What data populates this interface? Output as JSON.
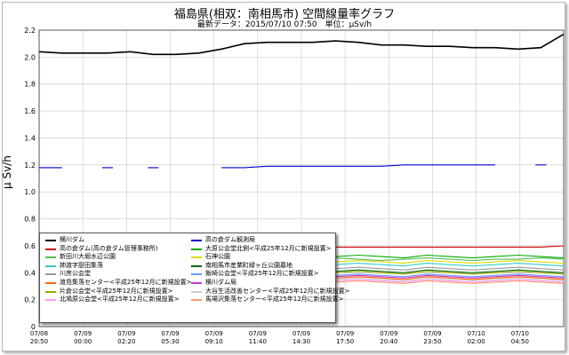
{
  "header": {
    "title": "福島県(相双：南相馬市) 空間線量率グラフ",
    "subtitle": "最新データ：2015/07/10 07:50　単位：μSv/h"
  },
  "chart_data": {
    "type": "line",
    "title": "福島県(相双：南相馬市) 空間線量率グラフ",
    "ylabel": "μ Sv/h",
    "ylim": [
      0,
      2.2
    ],
    "yticks": [
      "0",
      "0.2",
      "0.4",
      "0.6",
      "0.8",
      "1.0",
      "1.2",
      "1.4",
      "1.6",
      "1.8",
      "2.0",
      "2.2"
    ],
    "xticks": [
      {
        "date": "07/08",
        "time": "20:50"
      },
      {
        "date": "07/09",
        "time": "00:00"
      },
      {
        "date": "07/09",
        "time": "02:20"
      },
      {
        "date": "07/09",
        "time": "05:30"
      },
      {
        "date": "07/09",
        "time": "09:10"
      },
      {
        "date": "07/09",
        "time": "11:40"
      },
      {
        "date": "07/09",
        "time": "14:30"
      },
      {
        "date": "07/09",
        "time": "17:50"
      },
      {
        "date": "07/09",
        "time": "20:40"
      },
      {
        "date": "07/09",
        "time": "23:50"
      },
      {
        "date": "07/10",
        "time": "02:00"
      },
      {
        "date": "07/10",
        "time": "04:50"
      }
    ],
    "grid": true,
    "legend_position": "bottom-left",
    "series": [
      {
        "name": "横川ダム",
        "color": "#000000",
        "values": [
          2.04,
          2.03,
          2.03,
          2.03,
          2.04,
          2.02,
          2.02,
          2.03,
          2.06,
          2.1,
          2.11,
          2.11,
          2.11,
          2.12,
          2.11,
          2.09,
          2.09,
          2.08,
          2.08,
          2.07,
          2.07,
          2.06,
          2.07,
          2.17
        ]
      },
      {
        "name": "高の倉ダム(高の倉ダム管理事務所)",
        "color": "#d00000",
        "values": [
          0.6,
          0.59,
          0.59,
          0.59,
          0.59,
          0.59,
          0.59,
          0.59,
          0.59,
          0.59,
          0.59,
          0.59,
          0.59,
          0.59,
          0.59,
          0.59,
          0.59,
          0.59,
          0.59,
          0.59,
          0.59,
          0.59,
          0.59,
          0.6
        ]
      },
      {
        "name": "新田川大堀水辺公園",
        "color": "#55bb55",
        "values": [
          0.5,
          0.49,
          0.51,
          0.5,
          0.49,
          0.5,
          0.51,
          0.5,
          0.49,
          0.5,
          0.51,
          0.49,
          0.5,
          0.51,
          0.5,
          0.49,
          0.5,
          0.51,
          0.5,
          0.49,
          0.5,
          0.5,
          0.51,
          0.5
        ]
      },
      {
        "name": "姉渡字厨田集落",
        "color": "#33cccc",
        "values": [
          0.46,
          0.47,
          0.45,
          0.46,
          0.47,
          0.45,
          0.46,
          0.47,
          0.46,
          0.45,
          0.47,
          0.46,
          0.45,
          0.46,
          0.47,
          0.46,
          0.45,
          0.47,
          0.46,
          0.45,
          0.46,
          0.47,
          0.46,
          0.45
        ]
      },
      {
        "name": "川房公会堂",
        "color": "#999999",
        "values": [
          0.43,
          0.44,
          0.42,
          0.43,
          0.44,
          0.42,
          0.43,
          0.44,
          0.43,
          0.42,
          0.44,
          0.43,
          0.42,
          0.43,
          0.44,
          0.43,
          0.42,
          0.44,
          0.43,
          0.42,
          0.43,
          0.44,
          0.43,
          0.42
        ]
      },
      {
        "name": "渡島集落センター<平成25年12月に新規設置>",
        "color": "#ff6600",
        "values": [
          0.36,
          0.37,
          0.35,
          0.36,
          0.37,
          0.35,
          0.36,
          0.37,
          0.36,
          0.35,
          0.37,
          0.36,
          0.35,
          0.36,
          0.37,
          0.36,
          0.35,
          0.37,
          0.36,
          0.35,
          0.36,
          0.37,
          0.36,
          0.35
        ]
      },
      {
        "name": "片倉公会堂<平成25年12月に新規設置>",
        "color": "#99aa00",
        "values": [
          0.4,
          0.41,
          0.39,
          0.4,
          0.41,
          0.39,
          0.4,
          0.41,
          0.4,
          0.39,
          0.41,
          0.4,
          0.39,
          0.4,
          0.41,
          0.4,
          0.39,
          0.41,
          0.4,
          0.39,
          0.4,
          0.41,
          0.4,
          0.39
        ]
      },
      {
        "name": "北鳩原公会堂<平成25年12月に新規設置>",
        "color": "#ff99ff",
        "values": [
          0.34,
          0.35,
          0.33,
          0.34,
          0.35,
          0.33,
          0.34,
          0.35,
          0.34,
          0.33,
          0.35,
          0.34,
          0.33,
          0.34,
          0.35,
          0.34,
          0.33,
          0.35,
          0.34,
          0.33,
          0.34,
          0.35,
          0.34,
          0.33
        ]
      },
      {
        "name": "高の倉ダム観測局",
        "color": "#0000cc",
        "values": [
          1.18,
          1.18,
          null,
          1.18,
          null,
          1.18,
          null,
          null,
          1.18,
          1.18,
          1.19,
          1.19,
          1.19,
          1.19,
          1.19,
          1.19,
          1.2,
          1.2,
          1.2,
          1.2,
          1.2,
          null,
          1.2,
          null
        ]
      },
      {
        "name": "大原公会堂北側<平成25年12月に新規設置>",
        "color": "#00aa00",
        "values": [
          0.52,
          0.53,
          0.51,
          0.52,
          0.53,
          0.51,
          0.52,
          0.53,
          0.52,
          0.51,
          0.53,
          0.52,
          0.51,
          0.52,
          0.53,
          0.52,
          0.51,
          0.53,
          0.52,
          0.51,
          0.52,
          0.53,
          0.52,
          0.51
        ]
      },
      {
        "name": "石神公園",
        "color": "#dddd00",
        "values": [
          0.48,
          0.49,
          0.47,
          0.48,
          0.49,
          0.47,
          0.48,
          0.49,
          0.48,
          0.47,
          0.49,
          0.48,
          0.47,
          0.48,
          0.49,
          0.48,
          0.47,
          0.49,
          0.48,
          0.47,
          0.48,
          0.49,
          0.48,
          0.47
        ]
      },
      {
        "name": "南相馬市産業町緑ヶ丘公園墓地",
        "color": "#006600",
        "values": [
          0.41,
          0.42,
          0.4,
          0.41,
          0.42,
          0.4,
          0.41,
          0.42,
          0.41,
          0.4,
          0.42,
          0.41,
          0.4,
          0.41,
          0.42,
          0.41,
          0.4,
          0.42,
          0.41,
          0.4,
          0.41,
          0.42,
          0.41,
          0.4
        ]
      },
      {
        "name": "飯崎公会堂<平成25年12月に新規設置>",
        "color": "#6699ff",
        "values": [
          0.38,
          0.39,
          0.37,
          0.38,
          0.39,
          0.37,
          0.38,
          0.39,
          0.38,
          0.37,
          0.39,
          0.38,
          0.37,
          0.38,
          0.39,
          0.38,
          0.37,
          0.39,
          0.38,
          0.37,
          0.38,
          0.39,
          0.38,
          0.37
        ]
      },
      {
        "name": "横川ダム局",
        "color": "#cc33cc",
        "values": [
          0.37,
          0.38,
          0.36,
          0.37,
          0.38,
          0.36,
          0.37,
          0.38,
          0.37,
          0.36,
          0.38,
          0.37,
          0.36,
          0.37,
          0.38,
          0.37,
          0.36,
          0.38,
          0.37,
          0.36,
          0.37,
          0.38,
          0.37,
          0.36
        ]
      },
      {
        "name": "大谷生活改善センター<平成25年12月に新規設置>",
        "color": "#cccccc",
        "values": [
          0.35,
          0.36,
          0.34,
          0.35,
          0.36,
          0.34,
          0.35,
          0.36,
          0.35,
          0.34,
          0.36,
          0.35,
          0.34,
          0.35,
          0.36,
          0.35,
          0.34,
          0.36,
          0.35,
          0.34,
          0.35,
          0.36,
          0.35,
          0.34
        ]
      },
      {
        "name": "馬場沢集落センター<平成25年12月に新規設置>",
        "color": "#ff9966",
        "values": [
          0.33,
          0.34,
          0.32,
          0.33,
          0.34,
          0.32,
          0.33,
          0.34,
          0.33,
          0.32,
          0.34,
          0.33,
          0.32,
          0.33,
          0.34,
          0.33,
          0.32,
          0.34,
          0.33,
          0.32,
          0.33,
          0.34,
          0.33,
          0.32
        ]
      }
    ]
  }
}
